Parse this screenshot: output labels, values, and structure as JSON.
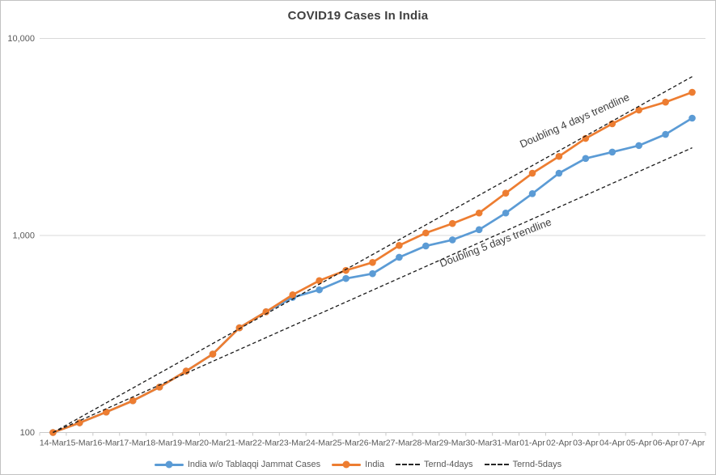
{
  "title": "COVID19 Cases In India",
  "chart_data": {
    "type": "line",
    "title": "COVID19 Cases In India",
    "xlabel": "",
    "ylabel": "",
    "y_scale": "log",
    "ylim": [
      100,
      10000
    ],
    "y_ticks": [
      {
        "value": 100,
        "label": "100"
      },
      {
        "value": 1000,
        "label": "1,000"
      },
      {
        "value": 10000,
        "label": "10,000"
      }
    ],
    "grid": "horizontal-only",
    "legend_position": "bottom",
    "categories": [
      "14-Mar",
      "15-Mar",
      "16-Mar",
      "17-Mar",
      "18-Mar",
      "19-Mar",
      "20-Mar",
      "21-Mar",
      "22-Mar",
      "23-Mar",
      "24-Mar",
      "25-Mar",
      "26-Mar",
      "27-Mar",
      "28-Mar",
      "29-Mar",
      "30-Mar",
      "31-Mar",
      "01-Apr",
      "02-Apr",
      "03-Apr",
      "04-Apr",
      "05-Apr",
      "06-Apr",
      "07-Apr"
    ],
    "series": [
      {
        "name": "India w/o Tablaqqi Jammat Cases",
        "color": "#5B9BD5",
        "values": [
          100,
          112,
          127,
          145,
          170,
          205,
          250,
          340,
          410,
          485,
          530,
          605,
          640,
          775,
          885,
          950,
          1070,
          1300,
          1630,
          2070,
          2460,
          2650,
          2860,
          3260,
          3940
        ]
      },
      {
        "name": "India",
        "color": "#ED7D31",
        "values": [
          100,
          112,
          127,
          145,
          170,
          205,
          250,
          340,
          410,
          500,
          590,
          665,
          730,
          890,
          1030,
          1150,
          1300,
          1640,
          2070,
          2520,
          3110,
          3690,
          4330,
          4750,
          5330
        ]
      }
    ],
    "trendlines": [
      {
        "name": "Ternd-4days",
        "start": 100,
        "doubling_days": 4,
        "color": "#1a1a1a",
        "annotation": "Doubling 4 days trendline"
      },
      {
        "name": "Ternd-5days",
        "start": 100,
        "doubling_days": 5,
        "color": "#1a1a1a",
        "annotation": "Doubling 5 days trendline"
      }
    ]
  },
  "colors": {
    "title_text": "#404040",
    "axis_text": "#595959",
    "gridline": "#D9D9D9",
    "axis_line": "#C9C9C9",
    "annotation_text": "#404040"
  }
}
